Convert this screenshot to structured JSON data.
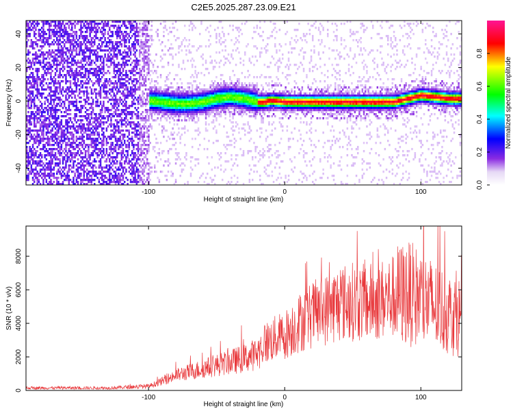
{
  "title": "C2E5.2025.287.23.09.E21",
  "chart_data": [
    {
      "type": "heatmap",
      "title": "C2E5.2025.287.23.09.E21",
      "xlabel": "Height of straight line (km)",
      "ylabel": "Frequency (Hz)",
      "xlim": [
        -190,
        130
      ],
      "ylim": [
        -50,
        48
      ],
      "xticks": [
        -100,
        0,
        100
      ],
      "yticks": [
        -40,
        -20,
        0,
        20,
        40
      ],
      "colorbar": {
        "label": "Normalized spectral amplitude",
        "range": [
          0,
          1
        ],
        "ticks": [
          0.0,
          0.2,
          0.4,
          0.6,
          0.8
        ],
        "colors": [
          "#ffffff",
          "#8a2be2",
          "#0000ff",
          "#00ffff",
          "#00ff00",
          "#ffff00",
          "#ff0000",
          "#ff1493"
        ]
      },
      "trace": {
        "x": [
          -102,
          -90,
          -80,
          -70,
          -60,
          -50,
          -40,
          -30,
          -20,
          -15,
          -10,
          0,
          20,
          40,
          60,
          70,
          80,
          90,
          95,
          100,
          110,
          120,
          130
        ],
        "y": [
          1,
          0,
          -1,
          -1,
          0,
          2,
          3,
          2,
          0,
          0,
          1,
          0,
          0,
          0,
          0,
          0,
          0,
          2,
          3,
          4,
          3,
          2,
          2
        ]
      },
      "noise_region_x": [
        -190,
        -100
      ]
    },
    {
      "type": "line",
      "xlabel": "Height of straight line (km)",
      "ylabel": "SNR (10 * v/v)",
      "xlim": [
        -190,
        130
      ],
      "ylim": [
        0,
        9800
      ],
      "xticks": [
        -100,
        0,
        100
      ],
      "yticks": [
        0,
        2000,
        4000,
        6000,
        8000
      ],
      "color": "#e8383b",
      "envelope": {
        "x": [
          -190,
          -130,
          -100,
          -90,
          -80,
          -70,
          -60,
          -50,
          -40,
          -30,
          -20,
          -15,
          -10,
          0,
          10,
          20,
          30,
          40,
          50,
          60,
          70,
          80,
          90,
          100,
          110,
          120,
          130
        ],
        "y": [
          150,
          150,
          250,
          550,
          900,
          1100,
          1300,
          1500,
          1700,
          1900,
          2200,
          2800,
          3000,
          3300,
          4000,
          4500,
          4800,
          5200,
          5300,
          5200,
          5400,
          5600,
          5800,
          5500,
          5000,
          4600,
          4400
        ]
      }
    }
  ]
}
